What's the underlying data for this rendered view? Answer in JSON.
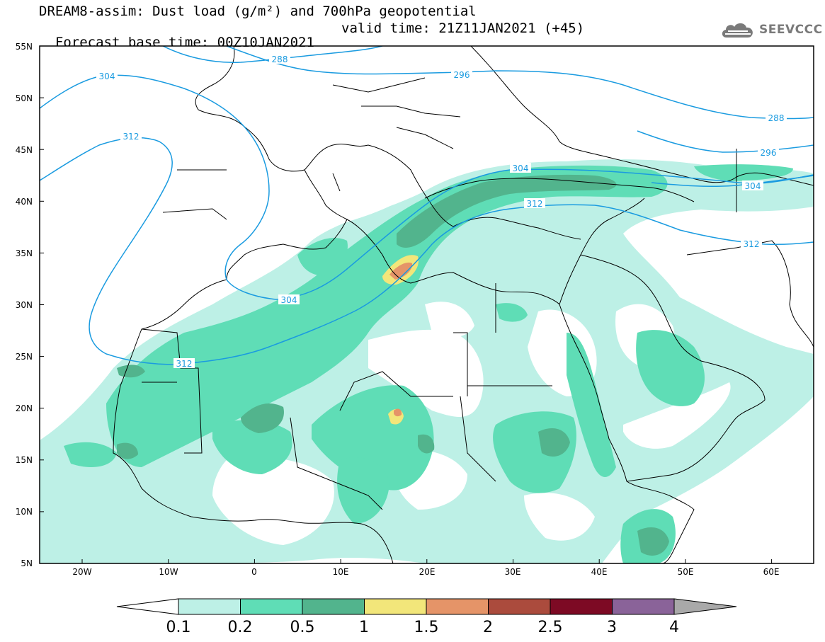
{
  "title": {
    "line1": "DREAM8-assim: Dust load (g/m²) and 700hPa geopotential",
    "line2": "Forecast base time: 00Z10JAN2021",
    "valid": "valid time: 21Z11JAN2021 (+45)"
  },
  "logo": {
    "text": "SEEVCCC",
    "icon": "cloud-icon"
  },
  "colors": {
    "contour": "#1a9be0",
    "coast": "#000000",
    "levels": [
      "#bdf0e6",
      "#5fddb6",
      "#52b48d",
      "#f2e67a",
      "#e59468",
      "#ab4b3d",
      "#7d0a24",
      "#8a6399",
      "#a9a9a9"
    ]
  },
  "map": {
    "lat_labels": [
      "55N",
      "50N",
      "45N",
      "40N",
      "35N",
      "30N",
      "25N",
      "20N",
      "15N",
      "10N",
      "5N"
    ],
    "lon_labels": [
      "20W",
      "10W",
      "0",
      "10E",
      "20E",
      "30E",
      "40E",
      "50E",
      "60E"
    ],
    "contour_labels": [
      "288",
      "296",
      "304",
      "312",
      "304",
      "312",
      "288",
      "296",
      "304",
      "304",
      "312",
      "312"
    ]
  },
  "legend": {
    "tick_labels": [
      "0.1",
      "0.2",
      "0.5",
      "1",
      "1.5",
      "2",
      "2.5",
      "3",
      "4"
    ]
  }
}
